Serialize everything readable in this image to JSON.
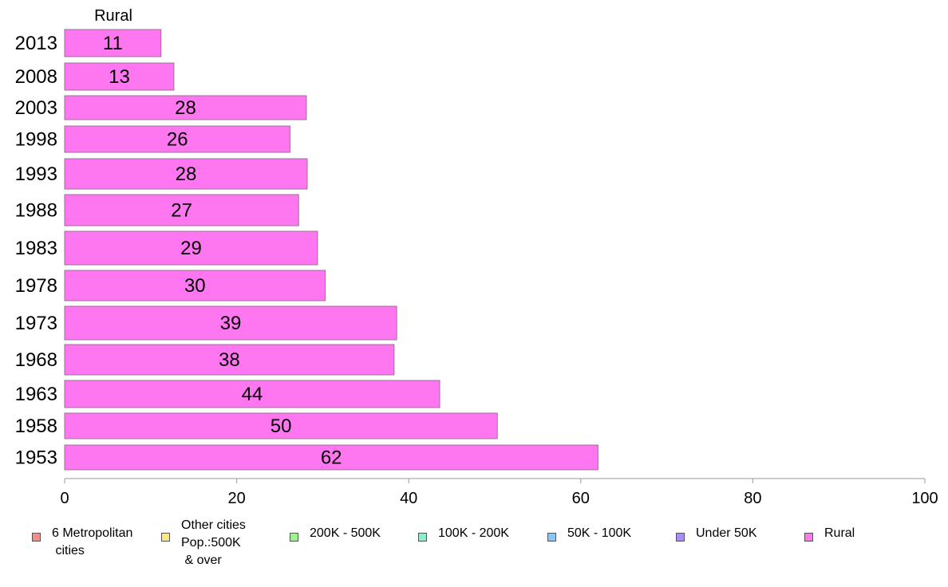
{
  "chart_data": {
    "type": "bar",
    "orientation": "horizontal",
    "panel_title": "Rural",
    "categories": [
      "2013",
      "2008",
      "2003",
      "1998",
      "1993",
      "1988",
      "1983",
      "1978",
      "1973",
      "1968",
      "1963",
      "1958",
      "1953"
    ],
    "series": [
      {
        "name": "Rural",
        "color": "#ff77f0",
        "values": [
          11.2,
          12.7,
          28.1,
          26.2,
          28.2,
          27.2,
          29.4,
          30.3,
          38.6,
          38.3,
          43.6,
          50.3,
          62.0
        ],
        "labels": [
          "11",
          "13",
          "28",
          "26",
          "28",
          "27",
          "29",
          "30",
          "39",
          "38",
          "44",
          "50",
          "62"
        ]
      }
    ],
    "xlim": [
      0,
      100
    ],
    "xticks": [
      "0",
      "20",
      "40",
      "60",
      "80",
      "100"
    ],
    "grid": false,
    "legend_position": "bottom"
  },
  "legend": [
    {
      "label": "6 Metropolitan\n cities",
      "color": "#ff8a80"
    },
    {
      "label": "Other cities\nPop.:500K\n & over",
      "color": "#ffe680"
    },
    {
      "label": "200K - 500K",
      "color": "#9cf58a"
    },
    {
      "label": "100K - 200K",
      "color": "#80f5c8"
    },
    {
      "label": "50K - 100K",
      "color": "#80c8ff"
    },
    {
      "label": "Under 50K",
      "color": "#a98aff"
    },
    {
      "label": "Rural",
      "color": "#ff77f0"
    }
  ]
}
